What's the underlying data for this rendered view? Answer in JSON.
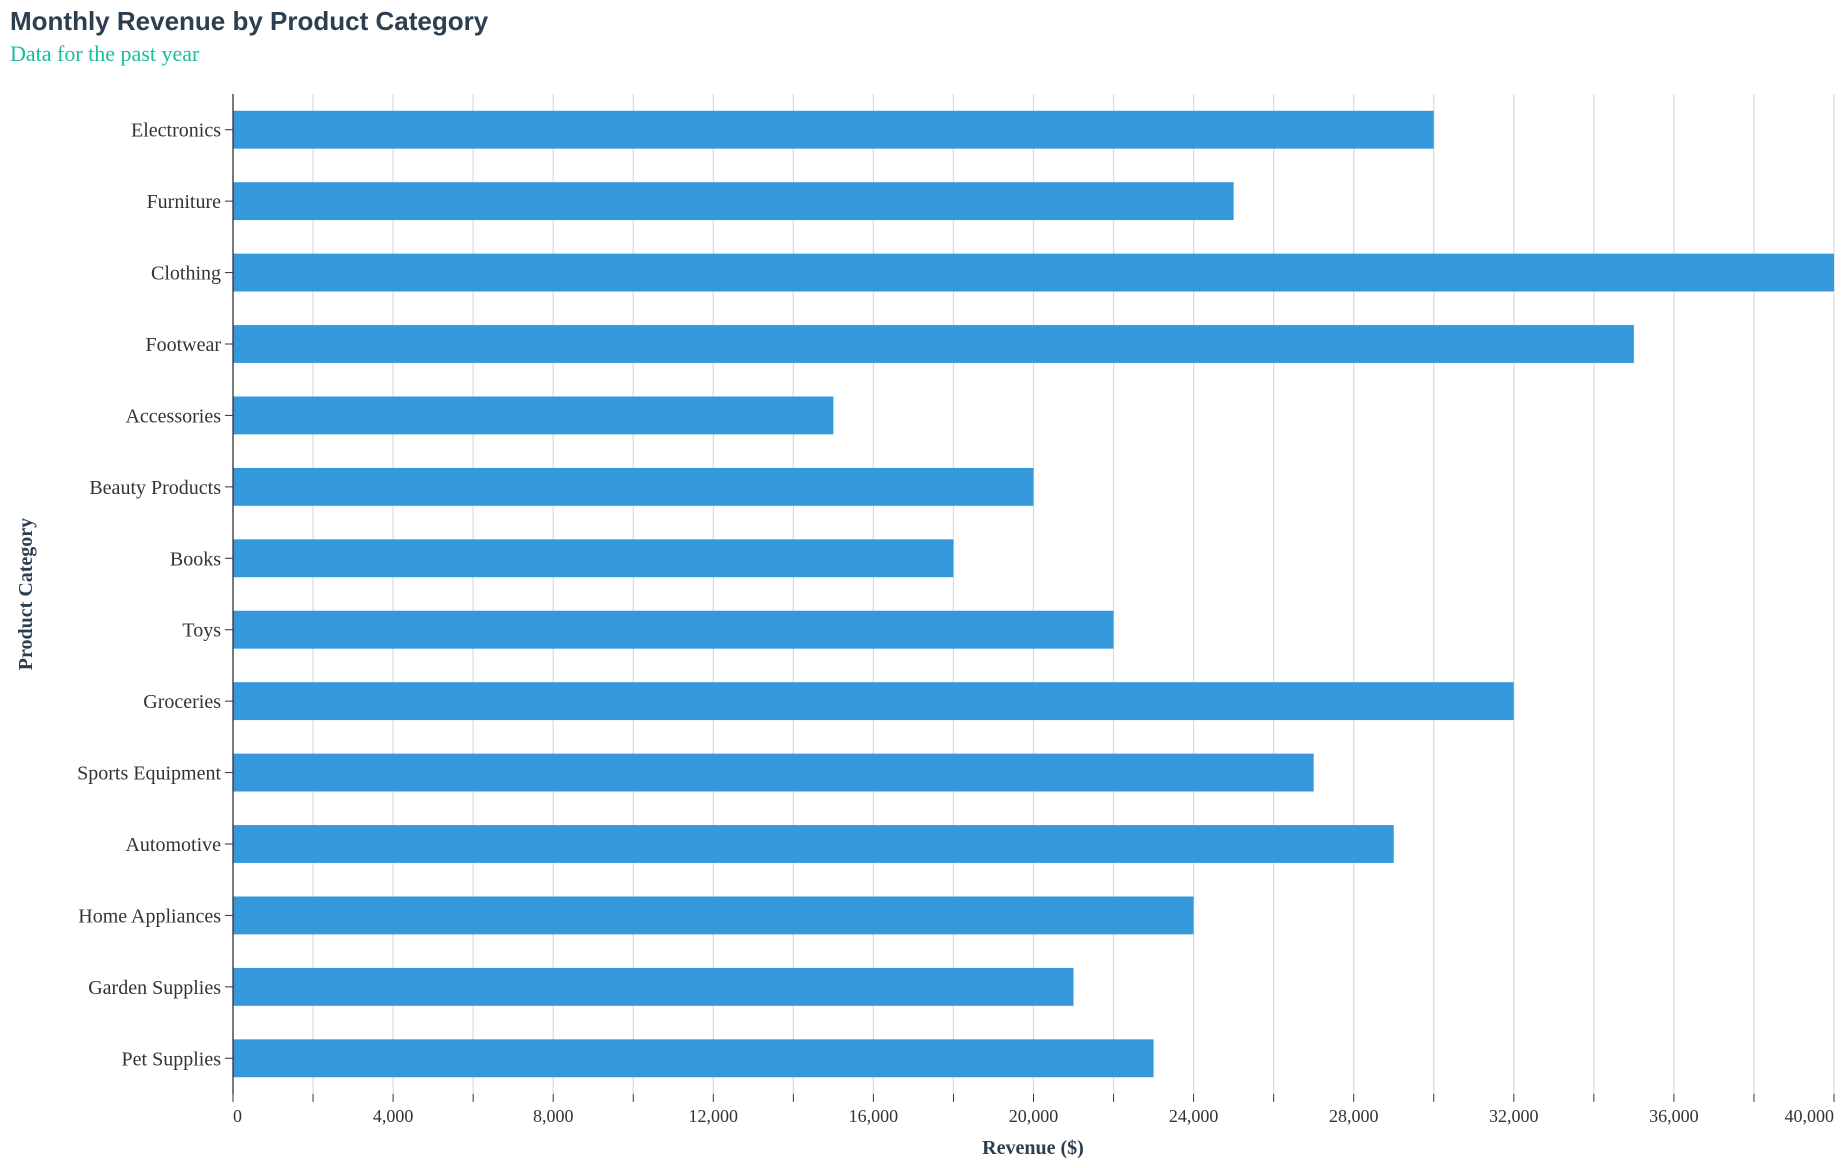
{
  "chart_data": {
    "type": "bar",
    "orientation": "horizontal",
    "title": "Monthly Revenue by Product Category",
    "subtitle": "Data for the past year",
    "xlabel": "Revenue ($)",
    "ylabel": "Product Category",
    "categories": [
      "Electronics",
      "Furniture",
      "Clothing",
      "Footwear",
      "Accessories",
      "Beauty Products",
      "Books",
      "Toys",
      "Groceries",
      "Sports Equipment",
      "Automotive",
      "Home Appliances",
      "Garden Supplies",
      "Pet Supplies"
    ],
    "values": [
      30000,
      25000,
      40000,
      35000,
      15000,
      20000,
      18000,
      22000,
      32000,
      27000,
      29000,
      24000,
      21000,
      23000
    ],
    "xlim": [
      0,
      40000
    ],
    "x_ticks": [
      0,
      4000,
      8000,
      12000,
      16000,
      20000,
      24000,
      28000,
      32000,
      36000,
      40000
    ],
    "x_tick_labels": [
      "0",
      "4,000",
      "8,000",
      "12,000",
      "16,000",
      "20,000",
      "24,000",
      "28,000",
      "32,000",
      "36,000",
      "40,000"
    ],
    "grid": true,
    "colors": {
      "bar": "#3498db",
      "title": "#2c3e50",
      "subtitle": "#1abc9c",
      "grid": "#dddddd",
      "axis": "#333333"
    }
  }
}
